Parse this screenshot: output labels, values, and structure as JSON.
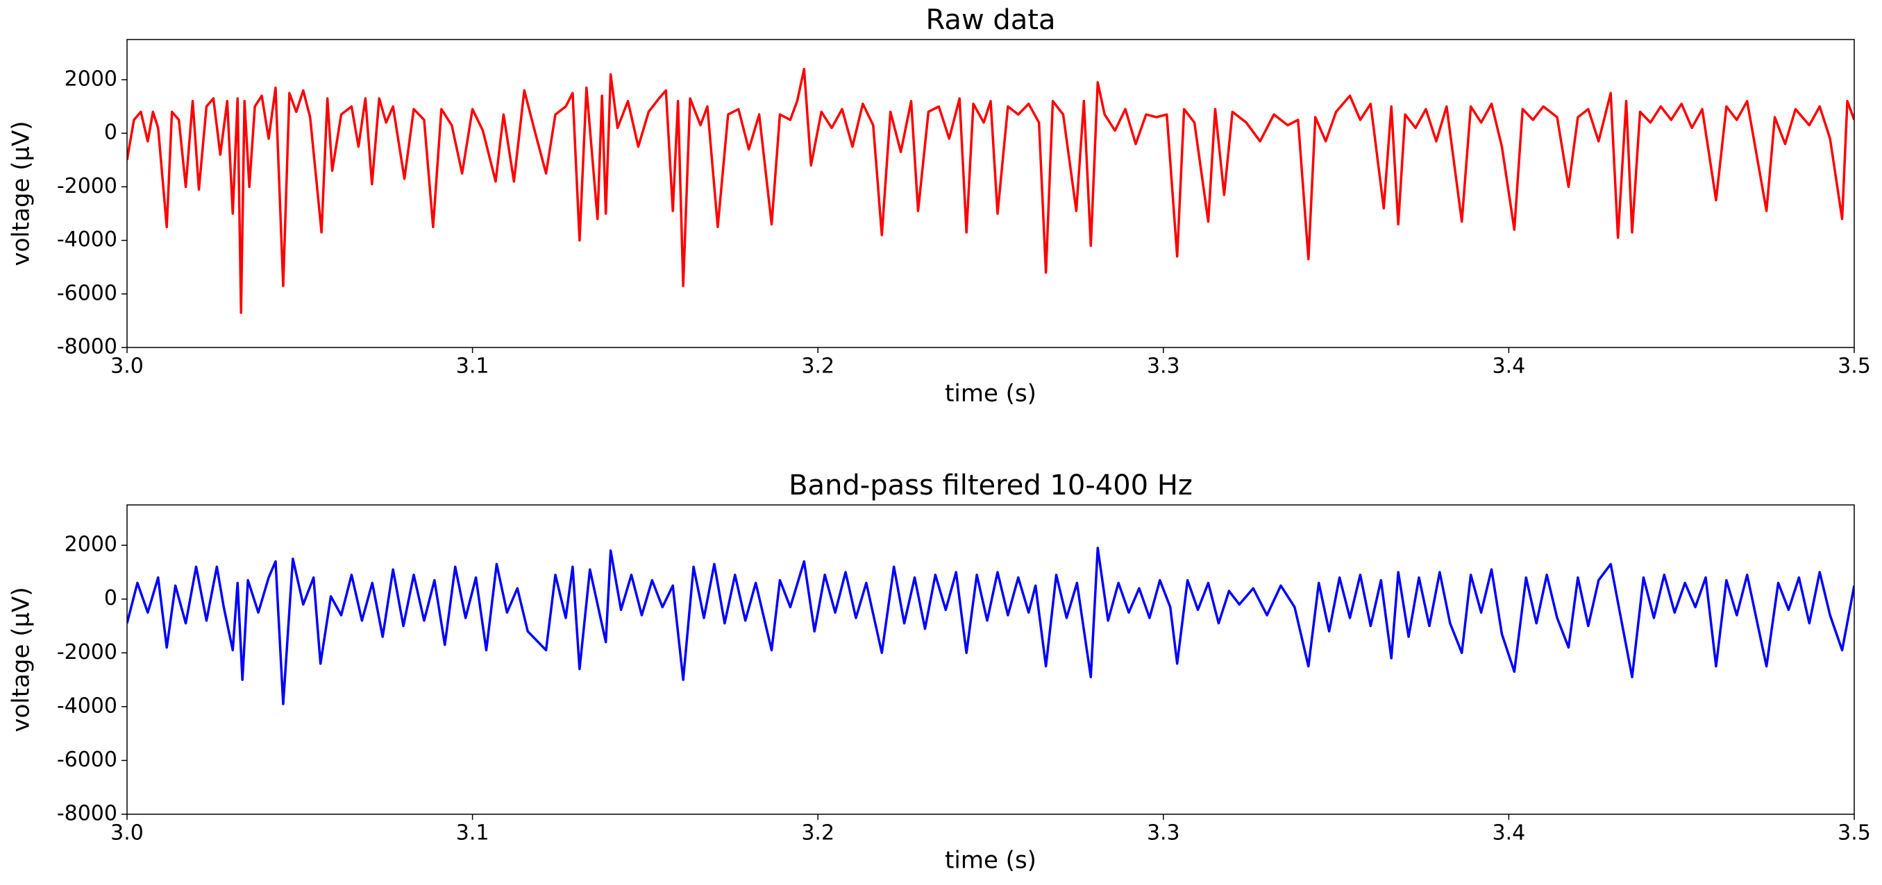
{
  "chart_data": [
    {
      "type": "line",
      "title": "Raw data",
      "xlabel": "time (s)",
      "ylabel": "voltage (μV)",
      "color": "#ff0000",
      "xlim": [
        3.0,
        3.5
      ],
      "xticks": [
        {
          "value": 3,
          "label": "3.0"
        },
        3.1,
        3.2,
        3.3,
        3.4,
        3.5
      ],
      "ylim": [
        -8000,
        3500
      ],
      "yticks": [
        -8000,
        -6000,
        -4000,
        -2000,
        0,
        2000
      ],
      "x": [
        3.0,
        3.002,
        3.004,
        3.006,
        3.0075,
        3.009,
        3.0115,
        3.013,
        3.015,
        3.017,
        3.019,
        3.0208,
        3.023,
        3.025,
        3.027,
        3.029,
        3.0306,
        3.032,
        3.033,
        3.034,
        3.0354,
        3.037,
        3.039,
        3.041,
        3.043,
        3.0452,
        3.047,
        3.049,
        3.051,
        3.053,
        3.0563,
        3.058,
        3.0594,
        3.062,
        3.065,
        3.067,
        3.069,
        3.0709,
        3.073,
        3.075,
        3.077,
        3.0803,
        3.083,
        3.086,
        3.0886,
        3.091,
        3.094,
        3.097,
        3.1,
        3.103,
        3.1067,
        3.109,
        3.112,
        3.115,
        3.118,
        3.1213,
        3.124,
        3.127,
        3.129,
        3.131,
        3.133,
        3.1362,
        3.1375,
        3.1386,
        3.14,
        3.142,
        3.145,
        3.148,
        3.151,
        3.154,
        3.156,
        3.158,
        3.1595,
        3.161,
        3.163,
        3.166,
        3.168,
        3.171,
        3.174,
        3.177,
        3.18,
        3.183,
        3.1866,
        3.189,
        3.192,
        3.194,
        3.196,
        3.198,
        3.201,
        3.204,
        3.207,
        3.21,
        3.213,
        3.216,
        3.2185,
        3.221,
        3.224,
        3.227,
        3.229,
        3.232,
        3.235,
        3.238,
        3.241,
        3.243,
        3.245,
        3.248,
        3.25,
        3.252,
        3.255,
        3.258,
        3.261,
        3.264,
        3.266,
        3.268,
        3.271,
        3.2748,
        3.277,
        3.279,
        3.281,
        3.283,
        3.286,
        3.289,
        3.292,
        3.295,
        3.298,
        3.301,
        3.304,
        3.306,
        3.309,
        3.313,
        3.315,
        3.3176,
        3.32,
        3.324,
        3.328,
        3.332,
        3.336,
        3.339,
        3.342,
        3.344,
        3.347,
        3.35,
        3.354,
        3.357,
        3.36,
        3.3638,
        3.366,
        3.368,
        3.37,
        3.373,
        3.376,
        3.379,
        3.382,
        3.3864,
        3.389,
        3.392,
        3.395,
        3.398,
        3.4016,
        3.404,
        3.407,
        3.41,
        3.414,
        3.4173,
        3.42,
        3.423,
        3.426,
        3.4295,
        3.4316,
        3.434,
        3.4357,
        3.438,
        3.441,
        3.444,
        3.447,
        3.45,
        3.453,
        3.456,
        3.46,
        3.463,
        3.466,
        3.469,
        3.4746,
        3.477,
        3.48,
        3.483,
        3.487,
        3.49,
        3.493,
        3.4965,
        3.498,
        3.5
      ],
      "values": [
        -1000,
        500,
        800,
        -300,
        800,
        200,
        -3500,
        800,
        500,
        -2000,
        1200,
        -2100,
        1000,
        1300,
        -800,
        1200,
        -3000,
        1300,
        -6700,
        1200,
        -2000,
        1000,
        1400,
        -200,
        1700,
        -5700,
        1500,
        800,
        1600,
        600,
        -3700,
        1300,
        -1400,
        700,
        1000,
        -500,
        1300,
        -1900,
        1300,
        400,
        1000,
        -1700,
        900,
        500,
        -3500,
        900,
        300,
        -1500,
        900,
        100,
        -1800,
        700,
        -1800,
        1600,
        100,
        -1500,
        700,
        1000,
        1500,
        -4000,
        1700,
        -3200,
        1400,
        -3000,
        2200,
        200,
        1200,
        -500,
        800,
        1300,
        1600,
        -2900,
        1200,
        -5700,
        1300,
        300,
        1000,
        -3500,
        700,
        900,
        -600,
        700,
        -3400,
        700,
        500,
        1200,
        2400,
        -1200,
        800,
        200,
        900,
        -500,
        1100,
        300,
        -3800,
        800,
        -700,
        1200,
        -2900,
        800,
        1000,
        -200,
        1300,
        -3700,
        1100,
        400,
        1200,
        -3000,
        1000,
        700,
        1100,
        400,
        -5200,
        1200,
        700,
        -2900,
        1200,
        -4200,
        1900,
        700,
        100,
        900,
        -400,
        700,
        600,
        700,
        -4600,
        900,
        400,
        -3300,
        900,
        -2300,
        800,
        400,
        -300,
        700,
        300,
        500,
        -4700,
        600,
        -300,
        800,
        1400,
        500,
        1100,
        -2800,
        1000,
        -3400,
        700,
        200,
        900,
        -300,
        1000,
        -3300,
        1000,
        400,
        1100,
        -500,
        -3600,
        900,
        500,
        1000,
        600,
        -2000,
        600,
        900,
        -300,
        1500,
        -3900,
        1200,
        -3700,
        800,
        400,
        1000,
        500,
        1100,
        200,
        900,
        -2500,
        1000,
        500,
        1200,
        -2900,
        600,
        -400,
        900,
        300,
        1000,
        -200,
        -3200,
        1200,
        500
      ]
    },
    {
      "type": "line",
      "title": "Band-pass filtered 10-400 Hz",
      "xlabel": "time (s)",
      "ylabel": "voltage (μV)",
      "color": "#0000ff",
      "xlim": [
        3.0,
        3.5
      ],
      "xticks": [
        {
          "value": 3,
          "label": "3.0"
        },
        3.1,
        3.2,
        3.3,
        3.4,
        3.5
      ],
      "ylim": [
        -8000,
        3500
      ],
      "yticks": [
        -8000,
        -6000,
        -4000,
        -2000,
        0,
        2000
      ],
      "x": [
        3.0,
        3.003,
        3.006,
        3.009,
        3.0115,
        3.014,
        3.017,
        3.02,
        3.023,
        3.026,
        3.028,
        3.0306,
        3.032,
        3.0334,
        3.035,
        3.038,
        3.041,
        3.043,
        3.0452,
        3.048,
        3.051,
        3.054,
        3.056,
        3.059,
        3.062,
        3.065,
        3.068,
        3.071,
        3.074,
        3.077,
        3.08,
        3.083,
        3.086,
        3.089,
        3.092,
        3.095,
        3.098,
        3.101,
        3.104,
        3.107,
        3.11,
        3.113,
        3.116,
        3.1213,
        3.124,
        3.127,
        3.129,
        3.131,
        3.134,
        3.1386,
        3.14,
        3.143,
        3.146,
        3.149,
        3.152,
        3.155,
        3.158,
        3.161,
        3.164,
        3.167,
        3.17,
        3.173,
        3.176,
        3.179,
        3.182,
        3.1866,
        3.189,
        3.192,
        3.196,
        3.199,
        3.202,
        3.205,
        3.208,
        3.211,
        3.214,
        3.2185,
        3.222,
        3.225,
        3.228,
        3.231,
        3.234,
        3.237,
        3.24,
        3.243,
        3.246,
        3.249,
        3.252,
        3.255,
        3.258,
        3.261,
        3.263,
        3.266,
        3.269,
        3.272,
        3.275,
        3.279,
        3.281,
        3.284,
        3.287,
        3.29,
        3.293,
        3.296,
        3.299,
        3.302,
        3.304,
        3.307,
        3.31,
        3.313,
        3.316,
        3.319,
        3.322,
        3.326,
        3.33,
        3.334,
        3.338,
        3.342,
        3.345,
        3.348,
        3.351,
        3.354,
        3.357,
        3.36,
        3.363,
        3.366,
        3.368,
        3.371,
        3.374,
        3.377,
        3.38,
        3.383,
        3.3864,
        3.389,
        3.392,
        3.395,
        3.398,
        3.4016,
        3.405,
        3.408,
        3.411,
        3.414,
        3.4173,
        3.42,
        3.423,
        3.426,
        3.4295,
        3.4357,
        3.439,
        3.442,
        3.445,
        3.448,
        3.451,
        3.454,
        3.457,
        3.46,
        3.463,
        3.466,
        3.469,
        3.4746,
        3.478,
        3.481,
        3.484,
        3.487,
        3.49,
        3.493,
        3.4965,
        3.5
      ],
      "values": [
        -900,
        600,
        -500,
        800,
        -1800,
        500,
        -900,
        1200,
        -800,
        1200,
        -300,
        -1900,
        600,
        -3000,
        700,
        -500,
        800,
        1400,
        -3900,
        1500,
        -200,
        800,
        -2400,
        100,
        -600,
        900,
        -800,
        600,
        -1400,
        1100,
        -1000,
        900,
        -800,
        700,
        -1700,
        1200,
        -700,
        800,
        -1900,
        1300,
        -500,
        400,
        -1200,
        -1900,
        900,
        -700,
        1200,
        -2600,
        1100,
        -1600,
        1800,
        -400,
        900,
        -600,
        700,
        -300,
        500,
        -3000,
        1200,
        -700,
        1300,
        -900,
        900,
        -800,
        600,
        -1900,
        700,
        -300,
        1400,
        -1200,
        900,
        -500,
        1000,
        -700,
        600,
        -2000,
        1200,
        -900,
        800,
        -1100,
        900,
        -400,
        1000,
        -2000,
        900,
        -800,
        1000,
        -600,
        800,
        -500,
        500,
        -2500,
        900,
        -700,
        600,
        -2900,
        1900,
        -800,
        600,
        -500,
        400,
        -700,
        700,
        -300,
        -2400,
        700,
        -400,
        600,
        -900,
        300,
        -200,
        400,
        -600,
        500,
        -300,
        -2500,
        600,
        -1200,
        800,
        -700,
        900,
        -1000,
        700,
        -2200,
        1000,
        -1400,
        800,
        -1000,
        1000,
        -900,
        -2000,
        900,
        -500,
        1100,
        -1300,
        -2700,
        800,
        -900,
        900,
        -700,
        -1800,
        800,
        -1000,
        700,
        1300,
        -2900,
        800,
        -700,
        900,
        -500,
        600,
        -300,
        800,
        -2500,
        700,
        -600,
        900,
        -2500,
        600,
        -400,
        800,
        -900,
        1000,
        -600,
        -1900,
        500
      ]
    }
  ]
}
